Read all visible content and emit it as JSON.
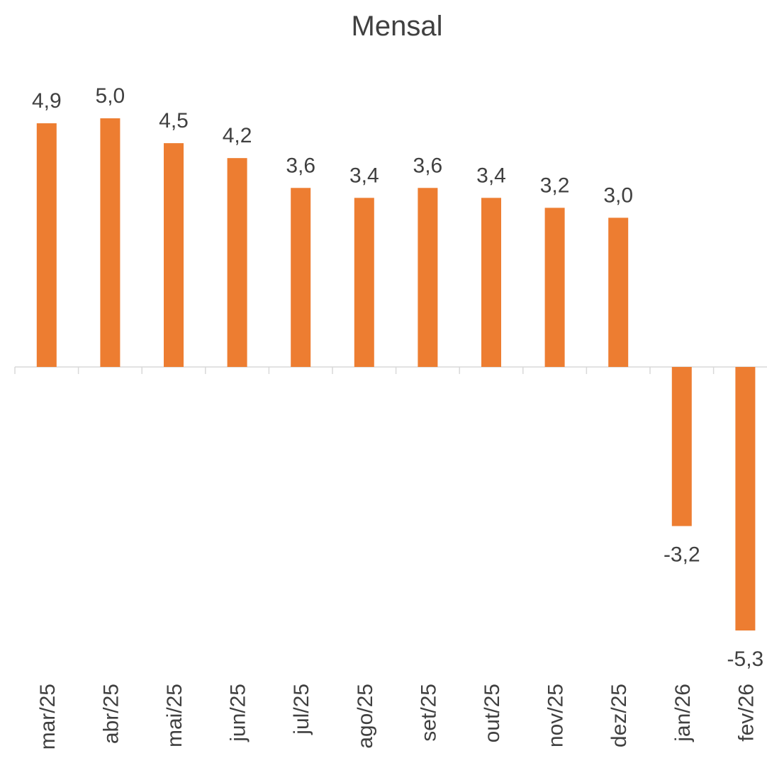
{
  "chart_data": {
    "type": "bar",
    "title": "Mensal",
    "categories": [
      "mar/25",
      "abr/25",
      "mai/25",
      "jun/25",
      "jul/25",
      "ago/25",
      "set/25",
      "out/25",
      "nov/25",
      "dez/25",
      "jan/26",
      "fev/26"
    ],
    "values": [
      4.9,
      5.0,
      4.5,
      4.2,
      3.6,
      3.4,
      3.6,
      3.4,
      3.2,
      3.0,
      -3.2,
      -5.3
    ],
    "value_labels": [
      "4,9",
      "5,0",
      "4,5",
      "4,2",
      "3,6",
      "3,4",
      "3,6",
      "3,4",
      "3,2",
      "3,0",
      "-3,2",
      "-5,3"
    ],
    "color": "#ed7d31"
  }
}
